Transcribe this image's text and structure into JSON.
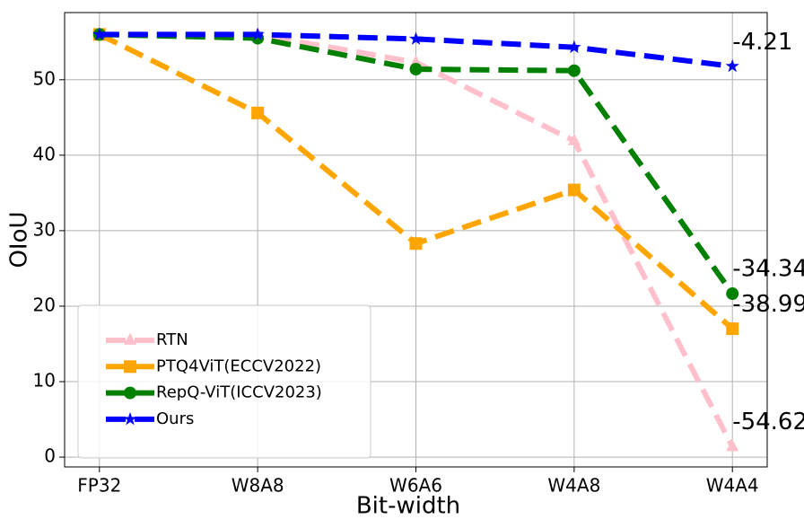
{
  "chart_data": {
    "type": "line",
    "xlabel": "Bit-width",
    "ylabel": "OIoU",
    "categories": [
      "FP32",
      "W8A8",
      "W6A6",
      "W4A8",
      "W4A4"
    ],
    "series": [
      {
        "name": "RTN",
        "color": "#ffc0cb",
        "marker": "triangle",
        "values": [
          56.0,
          56.0,
          52.3,
          41.9,
          1.38
        ]
      },
      {
        "name": "PTQ4ViT(ECCV2022)",
        "color": "#ffa500",
        "marker": "square",
        "values": [
          56.0,
          45.6,
          28.3,
          35.4,
          17.01
        ]
      },
      {
        "name": "RepQ-ViT(ICCV2023)",
        "color": "#008000",
        "marker": "circle",
        "values": [
          56.0,
          55.5,
          51.4,
          51.2,
          21.66
        ]
      },
      {
        "name": "Ours",
        "color": "#0000ff",
        "marker": "star",
        "values": [
          56.0,
          56.0,
          55.4,
          54.3,
          51.79
        ]
      }
    ],
    "annotations": [
      {
        "text": "-4.21",
        "x": "W4A4",
        "y": 54.9
      },
      {
        "text": "-34.34",
        "x": "W4A4",
        "y": 24.9
      },
      {
        "text": "-38.99",
        "x": "W4A4",
        "y": 20.2
      },
      {
        "text": "-54.62",
        "x": "W4A4",
        "y": 4.6
      }
    ],
    "ylim": [
      -1.3,
      58.9
    ],
    "yticks": [
      0,
      10,
      20,
      30,
      40,
      50
    ],
    "grid": true,
    "legend": "lower left"
  }
}
